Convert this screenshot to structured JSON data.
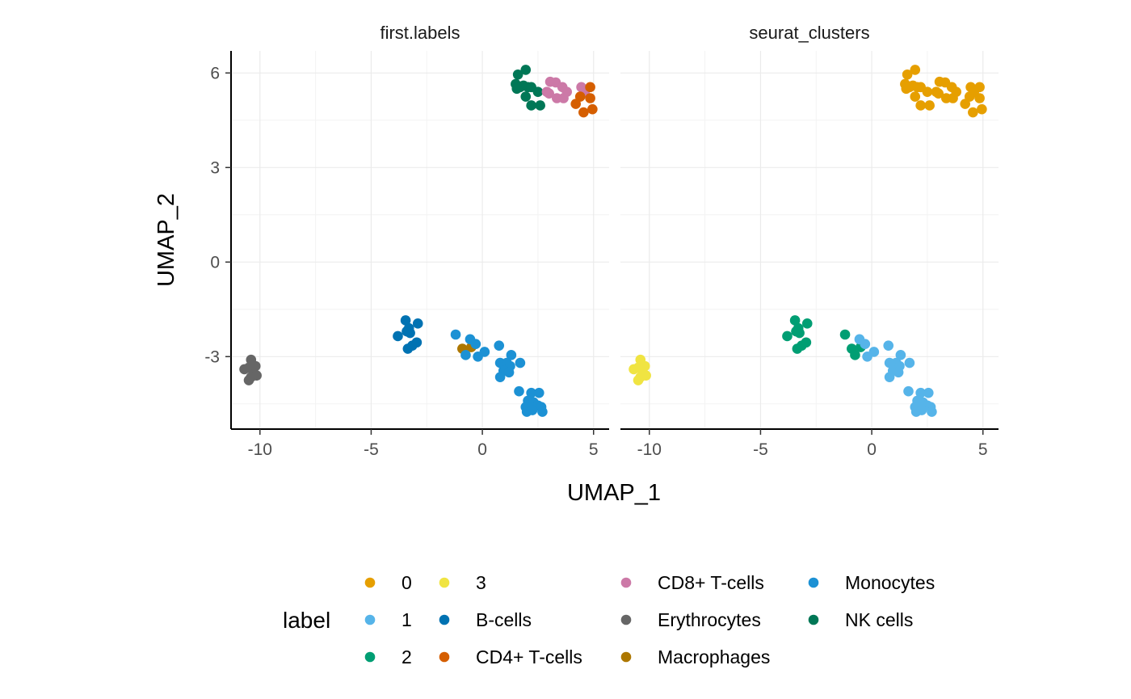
{
  "chart_data": {
    "type": "scatter",
    "facets": [
      "first.labels",
      "seurat_clusters"
    ],
    "xlabel": "UMAP_1",
    "ylabel": "UMAP_2",
    "xlim": [
      -11.3,
      5.7
    ],
    "ylim": [
      -5.3,
      6.7
    ],
    "xticks": [
      -10,
      -5,
      0,
      5
    ],
    "yticks": [
      6,
      3,
      0,
      -3
    ],
    "grid": true,
    "legend": {
      "title": "label",
      "position": "bottom",
      "entries": [
        {
          "name": "0",
          "color": "#E69F00"
        },
        {
          "name": "1",
          "color": "#56B4E9"
        },
        {
          "name": "2",
          "color": "#009E73"
        },
        {
          "name": "3",
          "color": "#F0E442"
        },
        {
          "name": "B-cells",
          "color": "#0072B2"
        },
        {
          "name": "CD4+ T-cells",
          "color": "#D55E00"
        },
        {
          "name": "CD8+ T-cells",
          "color": "#CC79A7"
        },
        {
          "name": "Erythrocytes",
          "color": "#666666"
        },
        {
          "name": "Macrophages",
          "color": "#AD7700"
        },
        {
          "name": "Monocytes",
          "color": "#1C91D4"
        },
        {
          "name": "NK cells",
          "color": "#007756"
        }
      ]
    },
    "points": [
      {
        "x": 1.6,
        "y": 5.95,
        "l1": "NK cells",
        "l2": "0"
      },
      {
        "x": 1.95,
        "y": 6.1,
        "l1": "NK cells",
        "l2": "0"
      },
      {
        "x": 1.5,
        "y": 5.65,
        "l1": "NK cells",
        "l2": "0"
      },
      {
        "x": 1.7,
        "y": 5.55,
        "l1": "NK cells",
        "l2": "0"
      },
      {
        "x": 1.85,
        "y": 5.6,
        "l1": "NK cells",
        "l2": "0"
      },
      {
        "x": 2.05,
        "y": 5.55,
        "l1": "NK cells",
        "l2": "0"
      },
      {
        "x": 2.2,
        "y": 5.55,
        "l1": "NK cells",
        "l2": "0"
      },
      {
        "x": 1.55,
        "y": 5.5,
        "l1": "NK cells",
        "l2": "0"
      },
      {
        "x": 2.5,
        "y": 5.4,
        "l1": "NK cells",
        "l2": "0"
      },
      {
        "x": 1.95,
        "y": 5.25,
        "l1": "NK cells",
        "l2": "0"
      },
      {
        "x": 2.2,
        "y": 4.97,
        "l1": "NK cells",
        "l2": "0"
      },
      {
        "x": 2.6,
        "y": 4.97,
        "l1": "NK cells",
        "l2": "0"
      },
      {
        "x": 3.05,
        "y": 5.72,
        "l1": "CD8+ T-cells",
        "l2": "0"
      },
      {
        "x": 3.3,
        "y": 5.7,
        "l1": "CD8+ T-cells",
        "l2": "0"
      },
      {
        "x": 3.6,
        "y": 5.55,
        "l1": "CD8+ T-cells",
        "l2": "0"
      },
      {
        "x": 2.9,
        "y": 5.4,
        "l1": "CD8+ T-cells",
        "l2": "0"
      },
      {
        "x": 3.0,
        "y": 5.35,
        "l1": "CD8+ T-cells",
        "l2": "0"
      },
      {
        "x": 3.35,
        "y": 5.2,
        "l1": "CD8+ T-cells",
        "l2": "0"
      },
      {
        "x": 3.65,
        "y": 5.2,
        "l1": "CD8+ T-cells",
        "l2": "0"
      },
      {
        "x": 3.8,
        "y": 5.4,
        "l1": "CD8+ T-cells",
        "l2": "0"
      },
      {
        "x": 4.45,
        "y": 5.55,
        "l1": "CD8+ T-cells",
        "l2": "0"
      },
      {
        "x": 4.6,
        "y": 5.4,
        "l1": "CD8+ T-cells",
        "l2": "0"
      },
      {
        "x": 4.85,
        "y": 5.55,
        "l1": "CD4+ T-cells",
        "l2": "0"
      },
      {
        "x": 4.4,
        "y": 5.25,
        "l1": "CD4+ T-cells",
        "l2": "0"
      },
      {
        "x": 4.85,
        "y": 5.2,
        "l1": "CD4+ T-cells",
        "l2": "0"
      },
      {
        "x": 4.2,
        "y": 5.02,
        "l1": "CD4+ T-cells",
        "l2": "0"
      },
      {
        "x": 4.55,
        "y": 4.75,
        "l1": "CD4+ T-cells",
        "l2": "0"
      },
      {
        "x": 4.95,
        "y": 4.85,
        "l1": "CD4+ T-cells",
        "l2": "0"
      },
      {
        "x": -3.45,
        "y": -1.85,
        "l1": "B-cells",
        "l2": "2"
      },
      {
        "x": -2.9,
        "y": -1.95,
        "l1": "B-cells",
        "l2": "2"
      },
      {
        "x": -3.3,
        "y": -2.1,
        "l1": "B-cells",
        "l2": "2"
      },
      {
        "x": -3.4,
        "y": -2.2,
        "l1": "B-cells",
        "l2": "2"
      },
      {
        "x": -3.25,
        "y": -2.25,
        "l1": "B-cells",
        "l2": "2"
      },
      {
        "x": -3.8,
        "y": -2.35,
        "l1": "B-cells",
        "l2": "2"
      },
      {
        "x": -2.95,
        "y": -2.55,
        "l1": "B-cells",
        "l2": "2"
      },
      {
        "x": -3.15,
        "y": -2.65,
        "l1": "B-cells",
        "l2": "2"
      },
      {
        "x": -3.35,
        "y": -2.75,
        "l1": "B-cells",
        "l2": "2"
      },
      {
        "x": -1.2,
        "y": -2.3,
        "l1": "Monocytes",
        "l2": "2"
      },
      {
        "x": -0.9,
        "y": -2.75,
        "l1": "Macrophages",
        "l2": "2"
      },
      {
        "x": -0.5,
        "y": -2.7,
        "l1": "Macrophages",
        "l2": "2"
      },
      {
        "x": -0.55,
        "y": -2.45,
        "l1": "Monocytes",
        "l2": "1"
      },
      {
        "x": -0.3,
        "y": -2.6,
        "l1": "Monocytes",
        "l2": "1"
      },
      {
        "x": -0.75,
        "y": -2.95,
        "l1": "Monocytes",
        "l2": "2"
      },
      {
        "x": -0.2,
        "y": -3.0,
        "l1": "Monocytes",
        "l2": "1"
      },
      {
        "x": 0.1,
        "y": -2.85,
        "l1": "Monocytes",
        "l2": "1"
      },
      {
        "x": 0.75,
        "y": -2.65,
        "l1": "Monocytes",
        "l2": "1"
      },
      {
        "x": 1.3,
        "y": -2.95,
        "l1": "Monocytes",
        "l2": "1"
      },
      {
        "x": 0.8,
        "y": -3.2,
        "l1": "Monocytes",
        "l2": "1"
      },
      {
        "x": 1.1,
        "y": -3.2,
        "l1": "Monocytes",
        "l2": "1"
      },
      {
        "x": 1.7,
        "y": -3.2,
        "l1": "Monocytes",
        "l2": "1"
      },
      {
        "x": 1.25,
        "y": -3.3,
        "l1": "Monocytes",
        "l2": "1"
      },
      {
        "x": 0.95,
        "y": -3.45,
        "l1": "Monocytes",
        "l2": "1"
      },
      {
        "x": 1.2,
        "y": -3.5,
        "l1": "Monocytes",
        "l2": "1"
      },
      {
        "x": 0.8,
        "y": -3.65,
        "l1": "Monocytes",
        "l2": "1"
      },
      {
        "x": 1.65,
        "y": -4.1,
        "l1": "Monocytes",
        "l2": "1"
      },
      {
        "x": 2.2,
        "y": -4.15,
        "l1": "Monocytes",
        "l2": "1"
      },
      {
        "x": 2.55,
        "y": -4.15,
        "l1": "Monocytes",
        "l2": "1"
      },
      {
        "x": 2.05,
        "y": -4.4,
        "l1": "Monocytes",
        "l2": "1"
      },
      {
        "x": 2.3,
        "y": -4.45,
        "l1": "Monocytes",
        "l2": "1"
      },
      {
        "x": 1.95,
        "y": -4.6,
        "l1": "Monocytes",
        "l2": "1"
      },
      {
        "x": 2.2,
        "y": -4.6,
        "l1": "Monocytes",
        "l2": "1"
      },
      {
        "x": 2.5,
        "y": -4.55,
        "l1": "Monocytes",
        "l2": "1"
      },
      {
        "x": 2.65,
        "y": -4.6,
        "l1": "Monocytes",
        "l2": "1"
      },
      {
        "x": 2.0,
        "y": -4.75,
        "l1": "Monocytes",
        "l2": "1"
      },
      {
        "x": 2.25,
        "y": -4.7,
        "l1": "Monocytes",
        "l2": "1"
      },
      {
        "x": 2.7,
        "y": -4.75,
        "l1": "Monocytes",
        "l2": "1"
      },
      {
        "x": -10.4,
        "y": -3.1,
        "l1": "Erythrocytes",
        "l2": "3"
      },
      {
        "x": -10.7,
        "y": -3.4,
        "l1": "Erythrocytes",
        "l2": "3"
      },
      {
        "x": -10.5,
        "y": -3.35,
        "l1": "Erythrocytes",
        "l2": "3"
      },
      {
        "x": -10.2,
        "y": -3.3,
        "l1": "Erythrocytes",
        "l2": "3"
      },
      {
        "x": -10.25,
        "y": -3.55,
        "l1": "Erythrocytes",
        "l2": "3"
      },
      {
        "x": -10.4,
        "y": -3.65,
        "l1": "Erythrocytes",
        "l2": "3"
      },
      {
        "x": -10.5,
        "y": -3.75,
        "l1": "Erythrocytes",
        "l2": "3"
      },
      {
        "x": -10.15,
        "y": -3.6,
        "l1": "Erythrocytes",
        "l2": "3"
      }
    ]
  }
}
